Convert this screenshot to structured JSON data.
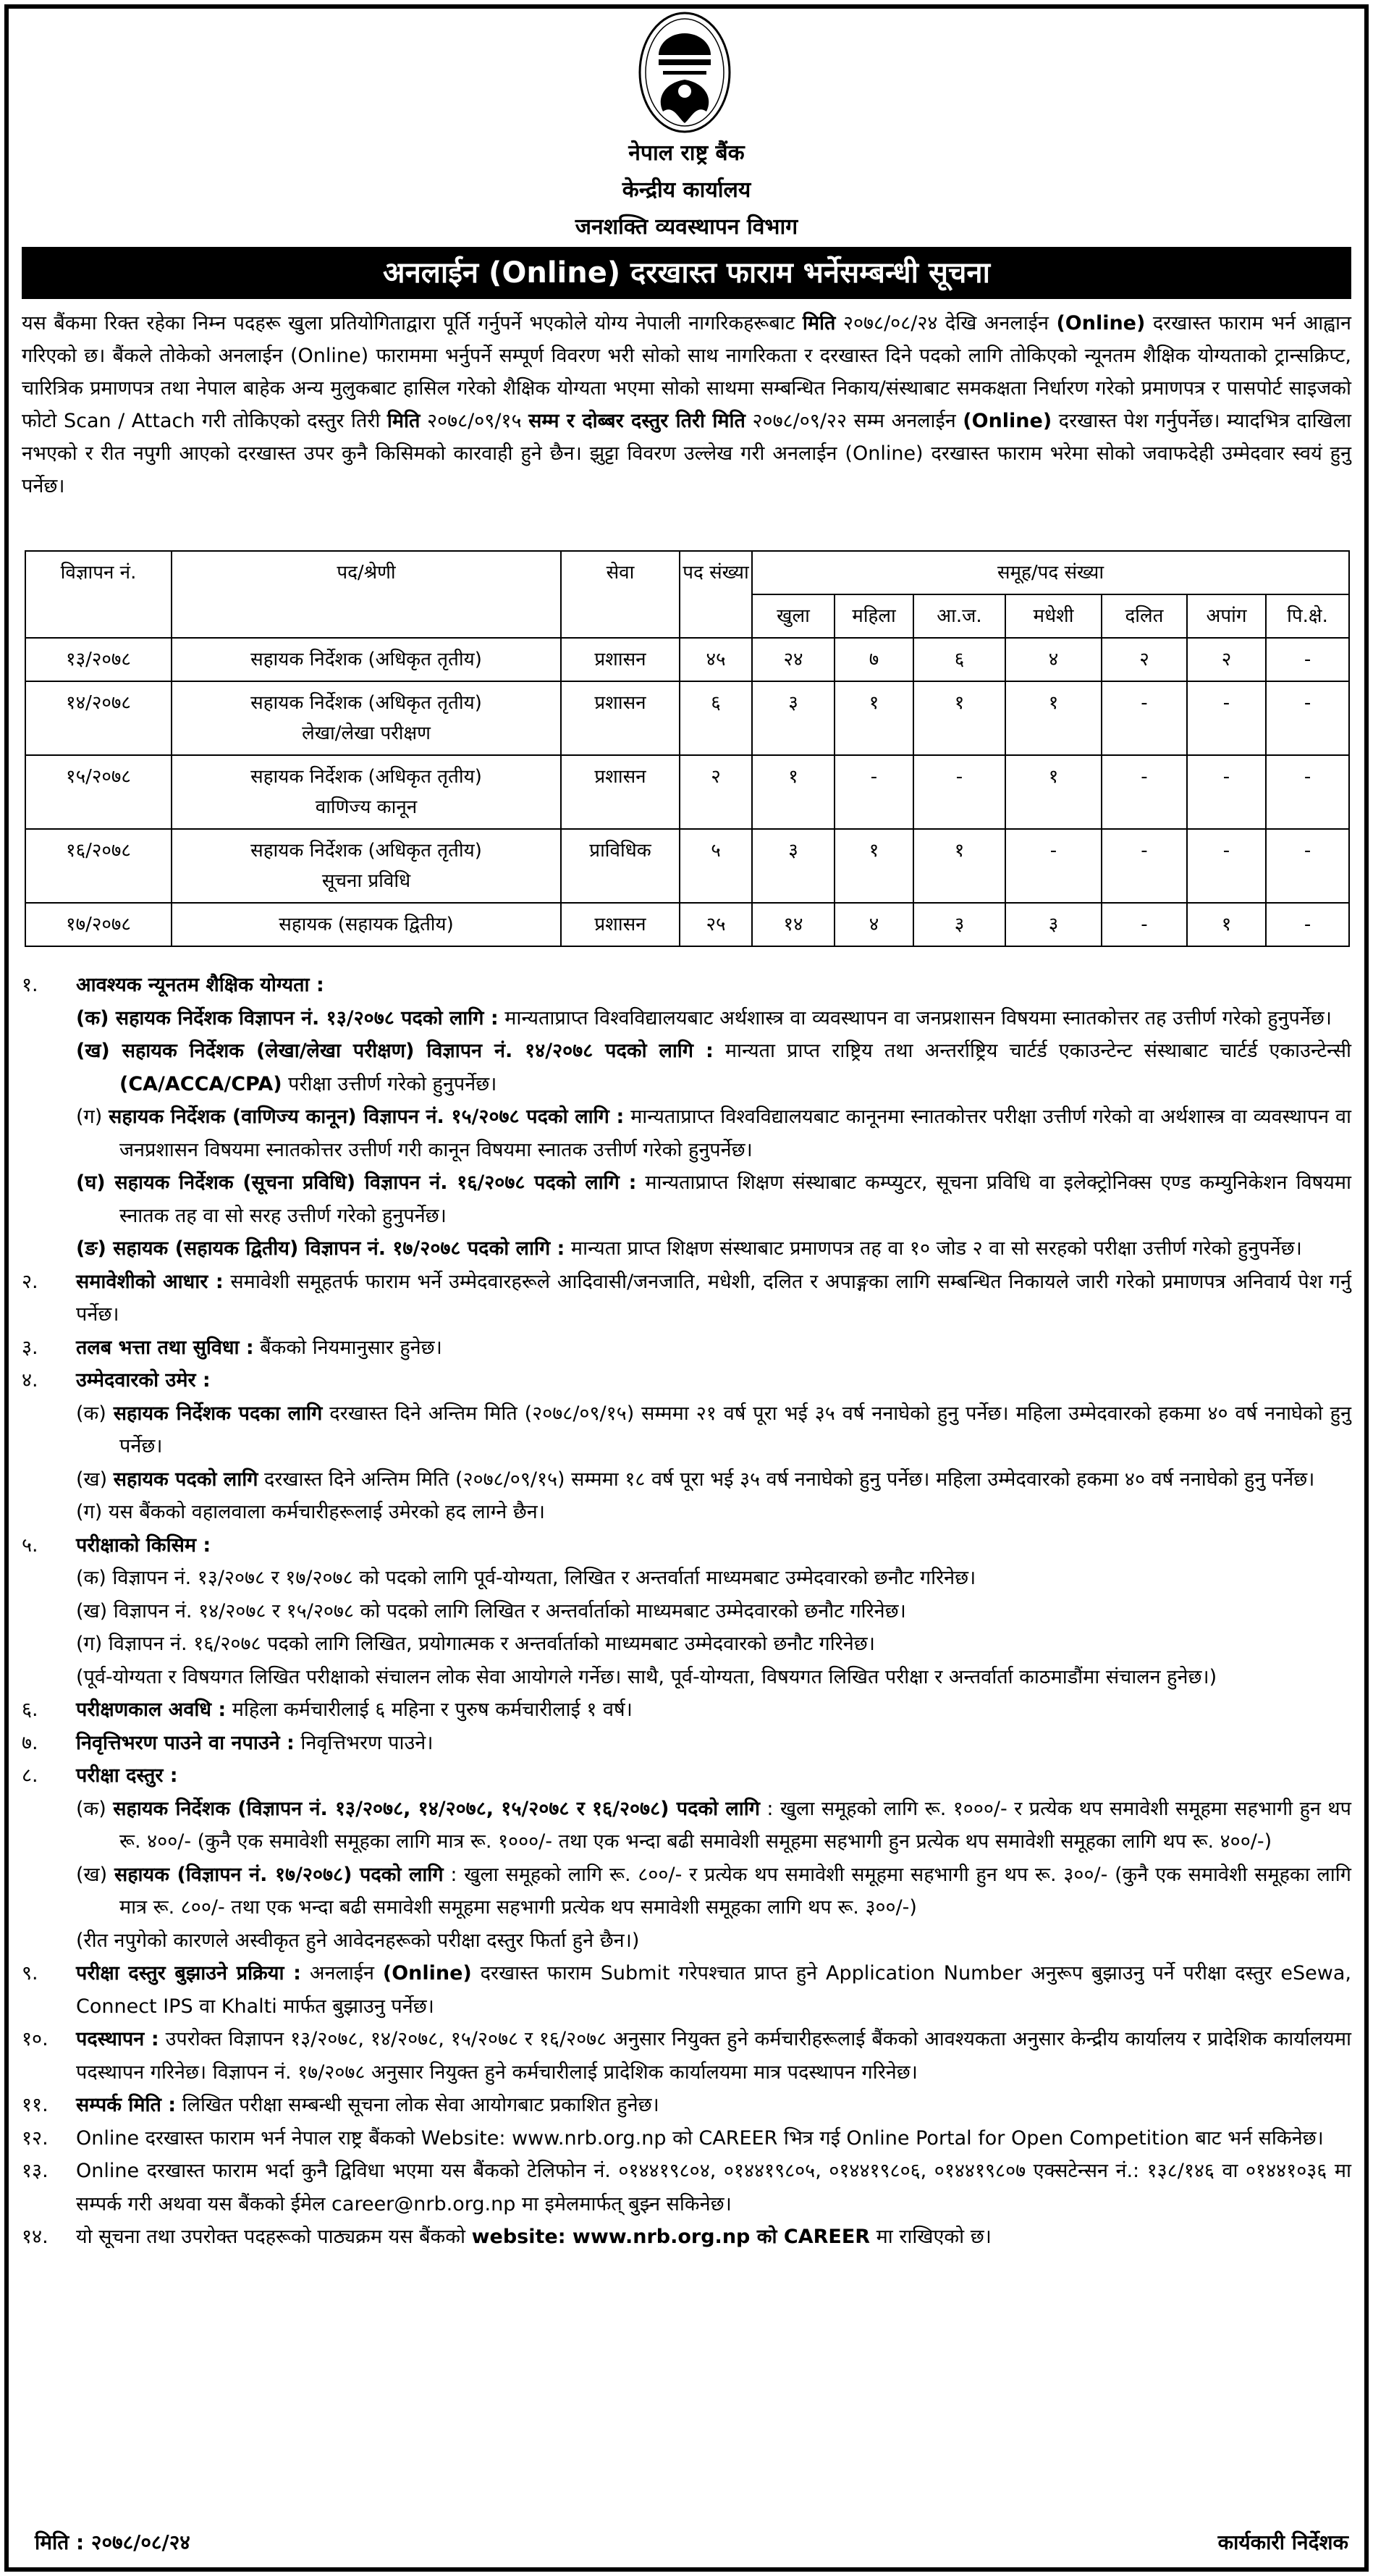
{
  "header": {
    "logo_text": "नेपाल राष्ट्र बैंक",
    "org": "नेपाल राष्ट्र बैंक",
    "office": "केन्द्रीय कार्यालय",
    "department": "जनशक्ति व्यवस्थापन विभाग",
    "banner_title": "अनलाईन (Online) दरखास्त फाराम भर्नेसम्बन्धी सूचना"
  },
  "intro": [
    {
      "t": "यस बैंकमा रिक्त रहेका निम्न पदहरू खुला प्रतियोगिताद्वारा पूर्ति गर्नुपर्ने भएकोले योग्य नेपाली नागरिकहरूबाट ",
      "b": false
    },
    {
      "t": "मिति",
      "b": true
    },
    {
      "t": " २०७८/०८/२४ देखि अनलाईन ",
      "b": false
    },
    {
      "t": "(Online)",
      "b": true
    },
    {
      "t": " दरखास्त फाराम भर्न आह्वान गरिएको छ। बैंकले तोकेको अनलाईन (Online) फाराममा भर्नुपर्ने सम्पूर्ण विवरण भरी सोको साथ नागरिकता र दरखास्त दिने पदको लागि तोकिएको न्यूनतम शैक्षिक योग्यताको ट्रान्सक्रिप्ट, चारित्रिक प्रमाणपत्र तथा नेपाल बाहेक अन्य मुलुकबाट हासिल गरेको शैक्षिक योग्यता भएमा सोको साथमा सम्बन्धित निकाय/संस्थाबाट समकक्षता निर्धारण गरेको प्रमाणपत्र र पासपोर्ट साइजको फोटो Scan / Attach गरी तोकिएको दस्तुर तिरी ",
      "b": false
    },
    {
      "t": "मिति",
      "b": true
    },
    {
      "t": " २०७८/०९/१५ ",
      "b": false
    },
    {
      "t": "सम्म र दोब्बर दस्तुर तिरी मिति",
      "b": true
    },
    {
      "t": " २०७८/०९/२२ सम्म अनलाईन ",
      "b": false
    },
    {
      "t": "(Online)",
      "b": true
    },
    {
      "t": " दरखास्त पेश गर्नुपर्नेछ। म्यादभित्र दाखिला नभएको र रीत नपुगी आएको दरखास्त उपर कुनै किसिमको कारवाही हुने छैन। झुट्टा विवरण उल्लेख गरी अनलाईन (Online) दरखास्त फाराम भरेमा सोको जवाफदेही उम्मेदवार स्वयं हुनु पर्नेछ।",
      "b": false
    }
  ],
  "table": {
    "headers": {
      "ad_no": "विज्ञापन नं.",
      "post": "पद/श्रेणी",
      "service": "सेवा",
      "count": "पद संख्या",
      "group": "समूह/पद संख्या"
    },
    "groups": [
      "खुला",
      "महिला",
      "आ.ज.",
      "मधेशी",
      "दलित",
      "अपांग",
      "पि.क्षे."
    ],
    "rows": [
      {
        "ad_no": "१३/२०७८",
        "post": "सहायक निर्देशक (अधिकृत तृतीय)",
        "post_sub": "",
        "service": "प्रशासन",
        "count": "४५",
        "groups": [
          "२४",
          "७",
          "६",
          "४",
          "२",
          "२",
          "-"
        ]
      },
      {
        "ad_no": "१४/२०७८",
        "post": "सहायक निर्देशक (अधिकृत तृतीय)",
        "post_sub": "लेखा/लेखा परीक्षण",
        "service": "प्रशासन",
        "count": "६",
        "groups": [
          "३",
          "१",
          "१",
          "१",
          "-",
          "-",
          "-"
        ]
      },
      {
        "ad_no": "१५/२०७८",
        "post": "सहायक निर्देशक (अधिकृत तृतीय)",
        "post_sub": "वाणिज्य कानून",
        "service": "प्रशासन",
        "count": "२",
        "groups": [
          "१",
          "-",
          "-",
          "१",
          "-",
          "-",
          "-"
        ]
      },
      {
        "ad_no": "१६/२०७८",
        "post": "सहायक निर्देशक (अधिकृत तृतीय)",
        "post_sub": "सूचना प्रविधि",
        "service": "प्राविधिक",
        "count": "५",
        "groups": [
          "३",
          "१",
          "१",
          "-",
          "-",
          "-",
          "-"
        ]
      },
      {
        "ad_no": "१७/२०७८",
        "post": "सहायक (सहायक द्वितीय)",
        "post_sub": "",
        "service": "प्रशासन",
        "count": "२५",
        "groups": [
          "१४",
          "४",
          "३",
          "३",
          "-",
          "१",
          "-"
        ]
      }
    ]
  },
  "sections": [
    {
      "num": "१.",
      "segs": [
        {
          "t": "आवश्यक न्यूनतम शैक्षिक योग्यता :",
          "b": true
        }
      ],
      "subs": [
        [
          {
            "t": "(क) ",
            "b": true
          },
          {
            "t": "सहायक निर्देशक विज्ञापन नं. १३/२०७८ पदको लागि :",
            "b": true
          },
          {
            "t": " मान्यताप्राप्त विश्वविद्यालयबाट अर्थशास्त्र वा व्यवस्थापन वा जनप्रशासन विषयमा स्नातकोत्तर तह उत्तीर्ण गरेको हुनुपर्नेछ।",
            "b": false
          }
        ],
        [
          {
            "t": "(ख) ",
            "b": true
          },
          {
            "t": "सहायक निर्देशक (लेखा/लेखा परीक्षण) विज्ञापन नं. १४/२०७८ पदको लागि :",
            "b": true
          },
          {
            "t": " मान्यता प्राप्त राष्ट्रिय तथा अन्तर्राष्ट्रिय चार्टर्ड एकाउन्टेन्ट संस्थाबाट चार्टर्ड एकाउन्टेन्सी ",
            "b": false
          },
          {
            "t": "(CA/ACCA/CPA)",
            "b": true
          },
          {
            "t": " परीक्षा उत्तीर्ण गरेको हुनुपर्नेछ।",
            "b": false
          }
        ],
        [
          {
            "t": "(ग) ",
            "b": false
          },
          {
            "t": "सहायक निर्देशक (वाणिज्य कानून) विज्ञापन नं. १५/२०७८ पदको लागि :",
            "b": true
          },
          {
            "t": " मान्यताप्राप्त विश्वविद्यालयबाट कानूनमा स्नातकोत्तर परीक्षा उत्तीर्ण गरेको वा अर्थशास्त्र वा व्यवस्थापन वा जनप्रशासन विषयमा स्नातकोत्तर उत्तीर्ण गरी कानून विषयमा स्नातक उत्तीर्ण गरेको हुनुपर्नेछ।",
            "b": false
          }
        ],
        [
          {
            "t": "(घ) ",
            "b": true
          },
          {
            "t": "सहायक निर्देशक (सूचना प्रविधि) विज्ञापन नं. १६/२०७८ पदको लागि :",
            "b": true
          },
          {
            "t": " मान्यताप्राप्त शिक्षण संस्थाबाट कम्प्युटर, सूचना प्रविधि वा इलेक्ट्रोनिक्स एण्ड कम्युनिकेशन विषयमा स्नातक तह वा सो सरह उत्तीर्ण गरेको हुनुपर्नेछ।",
            "b": false
          }
        ],
        [
          {
            "t": "(ङ) ",
            "b": true
          },
          {
            "t": "सहायक (सहायक द्वितीय) विज्ञापन नं. १७/२०७८ पदको लागि :",
            "b": true
          },
          {
            "t": " मान्यता प्राप्त शिक्षण संस्थाबाट प्रमाणपत्र तह वा १० जोड २ वा सो सरहको परीक्षा उत्तीर्ण गरेको हुनुपर्नेछ।",
            "b": false
          }
        ]
      ]
    },
    {
      "num": "२.",
      "segs": [
        {
          "t": "समावेशीको आधार :",
          "b": true
        },
        {
          "t": " समावेशी समूहतर्फ फाराम भर्ने उम्मेदवारहरूले आदिवासी/जनजाति, मधेशी, दलित र अपाङ्गका लागि सम्बन्धित निकायले जारी गरेको प्रमाणपत्र अनिवार्य पेश गर्नु पर्नेछ।",
          "b": false
        }
      ],
      "subs": []
    },
    {
      "num": "३.",
      "segs": [
        {
          "t": "तलब भत्ता तथा सुविधा :",
          "b": true
        },
        {
          "t": " बैंकको नियमानुसार हुनेछ।",
          "b": false
        }
      ],
      "subs": []
    },
    {
      "num": "४.",
      "segs": [
        {
          "t": "उम्मेदवारको उमेर :",
          "b": true
        }
      ],
      "subs": [
        [
          {
            "t": "(क) ",
            "b": false
          },
          {
            "t": "सहायक निर्देशक पदका लागि",
            "b": true
          },
          {
            "t": " दरखास्त दिने अन्तिम मिति (२०७८/०९/१५) सम्ममा २१ वर्ष पूरा भई ३५ वर्ष ननाघेको हुनु पर्नेछ। महिला उम्मेदवारको हकमा ४० वर्ष ननाघेको हुनु पर्नेछ।",
            "b": false
          }
        ],
        [
          {
            "t": "(ख) ",
            "b": false
          },
          {
            "t": "सहायक पदको लागि",
            "b": true
          },
          {
            "t": " दरखास्त दिने अन्तिम मिति (२०७८/०९/१५) सम्ममा १८ वर्ष पूरा भई ३५ वर्ष ननाघेको हुनु पर्नेछ। महिला उम्मेदवारको हकमा ४० वर्ष ननाघेको हुनु पर्नेछ।",
            "b": false
          }
        ],
        [
          {
            "t": "(ग) यस बैंकको वहालवाला कर्मचारीहरूलाई उमेरको हद लाग्ने छैन।",
            "b": false
          }
        ]
      ]
    },
    {
      "num": "५.",
      "segs": [
        {
          "t": "परीक्षाको किसिम :",
          "b": true
        }
      ],
      "subs": [
        [
          {
            "t": "(क) विज्ञापन नं. १३/२०७८ र १७/२०७८ को पदको लागि पूर्व-योग्यता, लिखित र अन्तर्वार्ता माध्यमबाट उम्मेदवारको छनौट गरिनेछ।",
            "b": false
          }
        ],
        [
          {
            "t": "(ख) विज्ञापन नं. १४/२०७८ र १५/२०७८ को पदको लागि लिखित र अन्तर्वार्ताको माध्यमबाट उम्मेदवारको छनौट गरिनेछ।",
            "b": false
          }
        ],
        [
          {
            "t": "(ग) विज्ञापन नं. १६/२०७८ पदको लागि लिखित, प्रयोगात्मक र अन्तर्वार्ताको माध्यमबाट उम्मेदवारको छनौट गरिनेछ।",
            "b": false
          }
        ],
        [
          {
            "t": "(पूर्व-योग्यता र विषयगत लिखित परीक्षाको संचालन लोक सेवा आयोगले गर्नेछ। साथै, पूर्व-योग्यता, विषयगत लिखित परीक्षा र अन्तर्वार्ता काठमाडौंमा संचालन हुनेछ।)",
            "b": false
          }
        ]
      ]
    },
    {
      "num": "६.",
      "segs": [
        {
          "t": "परीक्षणकाल अवधि :",
          "b": true
        },
        {
          "t": " महिला कर्मचारीलाई ६ महिना र पुरुष कर्मचारीलाई १ वर्ष।",
          "b": false
        }
      ],
      "subs": []
    },
    {
      "num": "७.",
      "segs": [
        {
          "t": "निवृत्तिभरण पाउने वा नपाउने :",
          "b": true
        },
        {
          "t": " निवृत्तिभरण पाउने।",
          "b": false
        }
      ],
      "subs": []
    },
    {
      "num": "८.",
      "segs": [
        {
          "t": "परीक्षा दस्तुर :",
          "b": true
        }
      ],
      "subs": [
        [
          {
            "t": "(क) ",
            "b": false
          },
          {
            "t": "सहायक निर्देशक (विज्ञापन नं. १३/२०७८, १४/२०७८, १५/२०७८ र १६/२०७८) पदको लागि",
            "b": true
          },
          {
            "t": " : खुला समूहको लागि रू. १०००/- र प्रत्येक थप समावेशी समूहमा सहभागी हुन थप रू. ४००/- (कुनै एक समावेशी समूहका लागि मात्र रू. १०००/- तथा एक भन्दा बढी समावेशी समूहमा सहभागी हुन प्रत्येक थप समावेशी समूहका लागि थप रू. ४००/-)",
            "b": false
          }
        ],
        [
          {
            "t": "(ख) ",
            "b": false
          },
          {
            "t": "सहायक (विज्ञापन नं. १७/२०७८) पदको लागि",
            "b": true
          },
          {
            "t": " : खुला समूहको लागि रू. ८००/- र प्रत्येक थप समावेशी समूहमा सहभागी हुन थप रू. ३००/- (कुनै एक समावेशी समूहका लागि मात्र रू. ८००/- तथा एक भन्दा बढी समावेशी समूहमा सहभागी प्रत्येक थप समावेशी समूहका लागि थप रू. ३००/-)",
            "b": false
          }
        ],
        [
          {
            "t": "(रीत नपुगेको कारणले अस्वीकृत हुने आवेदनहरूको परीक्षा दस्तुर फिर्ता हुने छैन।)",
            "b": false
          }
        ]
      ]
    },
    {
      "num": "९.",
      "segs": [
        {
          "t": "परीक्षा दस्तुर बुझाउने प्रक्रिया :",
          "b": true
        },
        {
          "t": " अनलाईन ",
          "b": false
        },
        {
          "t": "(Online)",
          "b": true
        },
        {
          "t": " दरखास्त फाराम Submit गरेपश्चात प्राप्त हुने Application Number अनुरूप बुझाउनु पर्ने परीक्षा दस्तुर eSewa, Connect IPS वा Khalti मार्फत बुझाउनु पर्नेछ।",
          "b": false
        }
      ],
      "subs": []
    },
    {
      "num": "१०.",
      "segs": [
        {
          "t": "पदस्थापन :",
          "b": true
        },
        {
          "t": " उपरोक्त विज्ञापन १३/२०७८, १४/२०७८, १५/२०७८ र १६/२०७८ अनुसार नियुक्त हुने कर्मचारीहरूलाई बैंकको आवश्यकता अनुसार केन्द्रीय कार्यालय र प्रादेशिक कार्यालयमा पदस्थापन गरिनेछ। विज्ञापन नं. १७/२०७८ अनुसार नियुक्त हुने कर्मचारीलाई प्रादेशिक कार्यालयमा मात्र पदस्थापन गरिनेछ।",
          "b": false
        }
      ],
      "subs": []
    },
    {
      "num": "११.",
      "segs": [
        {
          "t": "सम्पर्क मिति :",
          "b": true
        },
        {
          "t": " लिखित परीक्षा सम्बन्धी सूचना लोक सेवा आयोगबाट प्रकाशित हुनेछ।",
          "b": false
        }
      ],
      "subs": []
    },
    {
      "num": "१२.",
      "segs": [
        {
          "t": "Online दरखास्त फाराम भर्न नेपाल राष्ट्र बैंकको Website: www.nrb.org.np को CAREER भित्र गई Online Portal for Open Competition बाट भर्न सकिनेछ।",
          "b": false
        }
      ],
      "subs": []
    },
    {
      "num": "१३.",
      "segs": [
        {
          "t": "Online दरखास्त फाराम भर्दा कुनै द्विविधा भएमा यस बैंकको टेलिफोन नं. ०१४४१९८०४, ०१४४१९८०५, ०१४४१९८०६, ०१४४१९८०७ एक्सटेन्सन नं.: १३८/१४६ वा ०१४४१०३६ मा सम्पर्क गरी अथवा यस बैंकको ईमेल career@nrb.org.np मा इमेलमार्फत् बुझ्न सकिनेछ।",
          "b": false
        }
      ],
      "subs": []
    },
    {
      "num": "१४.",
      "segs": [
        {
          "t": "यो सूचना तथा उपरोक्त पदहरूको पाठ्यक्रम यस बैंकको ",
          "b": false
        },
        {
          "t": "website: www.nrb.org.np को CAREER",
          "b": true
        },
        {
          "t": " मा राखिएको छ।",
          "b": false
        }
      ],
      "subs": []
    }
  ],
  "footer": {
    "date": "मिति : २०७८/०८/२४",
    "signatory": "कार्यकारी निर्देशक"
  }
}
